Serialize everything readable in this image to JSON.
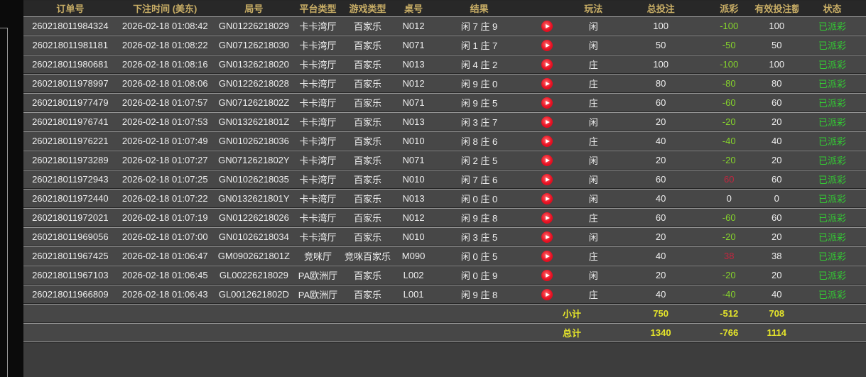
{
  "colors": {
    "header_text": "#c9ae66",
    "row_bg": "#474747",
    "header_bg": "#282828",
    "loss_green": "#86d42c",
    "win_red": "#c1263f",
    "status_green": "#33cc33",
    "summary_yellow": "#e6e62a",
    "replay_icon_red": "#e81123"
  },
  "table": {
    "headers": {
      "order_no": "订单号",
      "bet_time": "下注时间 (美东)",
      "round_no": "局号",
      "platform": "平台类型",
      "game_type": "游戏类型",
      "table_no": "桌号",
      "result": "结果",
      "replay": "",
      "play_type": "玩法",
      "total_bet": "总投注",
      "payout": "派彩",
      "valid_bet": "有效投注额",
      "status": "状态"
    },
    "rows": [
      {
        "order_no": "260218011984324",
        "bet_time": "2026-02-18 01:08:42",
        "round_no": "GN01226218029",
        "platform": "卡卡湾厅",
        "game_type": "百家乐",
        "table_no": "N012",
        "result": "闲 7 庄 9",
        "play_type": "闲",
        "total_bet": "100",
        "payout": "-100",
        "payout_kind": "loss",
        "valid_bet": "100",
        "status": "已派彩"
      },
      {
        "order_no": "260218011981181",
        "bet_time": "2026-02-18 01:08:22",
        "round_no": "GN07126218030",
        "platform": "卡卡湾厅",
        "game_type": "百家乐",
        "table_no": "N071",
        "result": "闲 1 庄 7",
        "play_type": "闲",
        "total_bet": "50",
        "payout": "-50",
        "payout_kind": "loss",
        "valid_bet": "50",
        "status": "已派彩"
      },
      {
        "order_no": "260218011980681",
        "bet_time": "2026-02-18 01:08:16",
        "round_no": "GN01326218020",
        "platform": "卡卡湾厅",
        "game_type": "百家乐",
        "table_no": "N013",
        "result": "闲 4 庄 2",
        "play_type": "庄",
        "total_bet": "100",
        "payout": "-100",
        "payout_kind": "loss",
        "valid_bet": "100",
        "status": "已派彩"
      },
      {
        "order_no": "260218011978997",
        "bet_time": "2026-02-18 01:08:06",
        "round_no": "GN01226218028",
        "platform": "卡卡湾厅",
        "game_type": "百家乐",
        "table_no": "N012",
        "result": "闲 9 庄 0",
        "play_type": "庄",
        "total_bet": "80",
        "payout": "-80",
        "payout_kind": "loss",
        "valid_bet": "80",
        "status": "已派彩"
      },
      {
        "order_no": "260218011977479",
        "bet_time": "2026-02-18 01:07:57",
        "round_no": "GN0712621802Z",
        "platform": "卡卡湾厅",
        "game_type": "百家乐",
        "table_no": "N071",
        "result": "闲 9 庄 5",
        "play_type": "庄",
        "total_bet": "60",
        "payout": "-60",
        "payout_kind": "loss",
        "valid_bet": "60",
        "status": "已派彩"
      },
      {
        "order_no": "260218011976741",
        "bet_time": "2026-02-18 01:07:53",
        "round_no": "GN0132621801Z",
        "platform": "卡卡湾厅",
        "game_type": "百家乐",
        "table_no": "N013",
        "result": "闲 3 庄 7",
        "play_type": "闲",
        "total_bet": "20",
        "payout": "-20",
        "payout_kind": "loss",
        "valid_bet": "20",
        "status": "已派彩"
      },
      {
        "order_no": "260218011976221",
        "bet_time": "2026-02-18 01:07:49",
        "round_no": "GN01026218036",
        "platform": "卡卡湾厅",
        "game_type": "百家乐",
        "table_no": "N010",
        "result": "闲 8 庄 6",
        "play_type": "庄",
        "total_bet": "40",
        "payout": "-40",
        "payout_kind": "loss",
        "valid_bet": "40",
        "status": "已派彩"
      },
      {
        "order_no": "260218011973289",
        "bet_time": "2026-02-18 01:07:27",
        "round_no": "GN0712621802Y",
        "platform": "卡卡湾厅",
        "game_type": "百家乐",
        "table_no": "N071",
        "result": "闲 2 庄 5",
        "play_type": "闲",
        "total_bet": "20",
        "payout": "-20",
        "payout_kind": "loss",
        "valid_bet": "20",
        "status": "已派彩"
      },
      {
        "order_no": "260218011972943",
        "bet_time": "2026-02-18 01:07:25",
        "round_no": "GN01026218035",
        "platform": "卡卡湾厅",
        "game_type": "百家乐",
        "table_no": "N010",
        "result": "闲 7 庄 6",
        "play_type": "闲",
        "total_bet": "60",
        "payout": "60",
        "payout_kind": "win",
        "valid_bet": "60",
        "status": "已派彩"
      },
      {
        "order_no": "260218011972440",
        "bet_time": "2026-02-18 01:07:22",
        "round_no": "GN0132621801Y",
        "platform": "卡卡湾厅",
        "game_type": "百家乐",
        "table_no": "N013",
        "result": "闲 0 庄 0",
        "play_type": "闲",
        "total_bet": "40",
        "payout": "0",
        "payout_kind": "zero",
        "valid_bet": "0",
        "status": "已派彩"
      },
      {
        "order_no": "260218011972021",
        "bet_time": "2026-02-18 01:07:19",
        "round_no": "GN01226218026",
        "platform": "卡卡湾厅",
        "game_type": "百家乐",
        "table_no": "N012",
        "result": "闲 9 庄 8",
        "play_type": "庄",
        "total_bet": "60",
        "payout": "-60",
        "payout_kind": "loss",
        "valid_bet": "60",
        "status": "已派彩"
      },
      {
        "order_no": "260218011969056",
        "bet_time": "2026-02-18 01:07:00",
        "round_no": "GN01026218034",
        "platform": "卡卡湾厅",
        "game_type": "百家乐",
        "table_no": "N010",
        "result": "闲 3 庄 5",
        "play_type": "闲",
        "total_bet": "20",
        "payout": "-20",
        "payout_kind": "loss",
        "valid_bet": "20",
        "status": "已派彩"
      },
      {
        "order_no": "260218011967425",
        "bet_time": "2026-02-18 01:06:47",
        "round_no": "GM0902621801Z",
        "platform": "竞咪厅",
        "game_type": "竞咪百家乐",
        "table_no": "M090",
        "result": "闲 0 庄 5",
        "play_type": "庄",
        "total_bet": "40",
        "payout": "38",
        "payout_kind": "win",
        "valid_bet": "38",
        "status": "已派彩"
      },
      {
        "order_no": "260218011967103",
        "bet_time": "2026-02-18 01:06:45",
        "round_no": "GL00226218029",
        "platform": "PA欧洲厅",
        "game_type": "百家乐",
        "table_no": "L002",
        "result": "闲 0 庄 9",
        "play_type": "闲",
        "total_bet": "20",
        "payout": "-20",
        "payout_kind": "loss",
        "valid_bet": "20",
        "status": "已派彩"
      },
      {
        "order_no": "260218011966809",
        "bet_time": "2026-02-18 01:06:43",
        "round_no": "GL0012621802D",
        "platform": "PA欧洲厅",
        "game_type": "百家乐",
        "table_no": "L001",
        "result": "闲 9 庄 8",
        "play_type": "庄",
        "total_bet": "40",
        "payout": "-40",
        "payout_kind": "loss",
        "valid_bet": "40",
        "status": "已派彩"
      }
    ],
    "subtotal": {
      "label": "小计",
      "total_bet": "750",
      "payout": "-512",
      "valid_bet": "708"
    },
    "total": {
      "label": "总计",
      "total_bet": "1340",
      "payout": "-766",
      "valid_bet": "1114"
    }
  }
}
